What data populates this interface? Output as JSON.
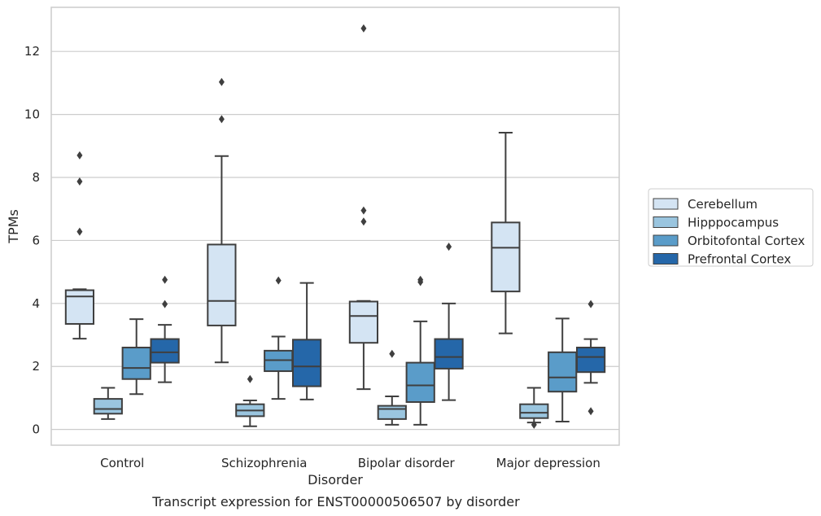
{
  "chart_data": {
    "type": "box",
    "title": "",
    "caption": "Transcript expression for ENST00000506507 by disorder",
    "xlabel": "Disorder",
    "ylabel": "TPMs",
    "ylim": [
      -0.5,
      13.4
    ],
    "yticks": [
      0,
      2,
      4,
      6,
      8,
      10,
      12
    ],
    "grid": "horizontal",
    "legend_position": "right",
    "categories": [
      "Control",
      "Schizophrenia",
      "Bipolar disorder",
      "Major depression"
    ],
    "series": [
      {
        "name": "Cerebellum",
        "color": "#d4e4f3",
        "boxes": [
          {
            "whislo": 2.88,
            "q1": 3.35,
            "med": 4.22,
            "q3": 4.42,
            "whishi": 4.45,
            "fliers": [
              8.7,
              7.87,
              6.28
            ]
          },
          {
            "whislo": 2.13,
            "q1": 3.3,
            "med": 4.08,
            "q3": 5.87,
            "whishi": 8.68,
            "fliers": [
              11.03,
              9.85
            ]
          },
          {
            "whislo": 1.28,
            "q1": 2.75,
            "med": 3.6,
            "q3": 4.06,
            "whishi": 4.08,
            "fliers": [
              12.73,
              6.95,
              6.6
            ]
          },
          {
            "whislo": 3.05,
            "q1": 4.38,
            "med": 5.77,
            "q3": 6.57,
            "whishi": 9.42,
            "fliers": []
          }
        ]
      },
      {
        "name": "Hipppocampus",
        "color": "#9ac5df",
        "boxes": [
          {
            "whislo": 0.33,
            "q1": 0.5,
            "med": 0.65,
            "q3": 0.97,
            "whishi": 1.32,
            "fliers": []
          },
          {
            "whislo": 0.1,
            "q1": 0.42,
            "med": 0.6,
            "q3": 0.8,
            "whishi": 0.92,
            "fliers": [
              1.6
            ]
          },
          {
            "whislo": 0.15,
            "q1": 0.33,
            "med": 0.65,
            "q3": 0.75,
            "whishi": 1.05,
            "fliers": [
              2.4
            ]
          },
          {
            "whislo": 0.22,
            "q1": 0.36,
            "med": 0.53,
            "q3": 0.8,
            "whishi": 1.32,
            "fliers": [
              0.15
            ]
          }
        ]
      },
      {
        "name": "Orbitofontal Cortex",
        "color": "#5a9cc9",
        "boxes": [
          {
            "whislo": 1.12,
            "q1": 1.6,
            "med": 1.95,
            "q3": 2.6,
            "whishi": 3.5,
            "fliers": []
          },
          {
            "whislo": 0.97,
            "q1": 1.85,
            "med": 2.2,
            "q3": 2.5,
            "whishi": 2.95,
            "fliers": [
              4.73
            ]
          },
          {
            "whislo": 0.15,
            "q1": 0.87,
            "med": 1.4,
            "q3": 2.12,
            "whishi": 3.43,
            "fliers": [
              4.75,
              4.68
            ]
          },
          {
            "whislo": 0.25,
            "q1": 1.2,
            "med": 1.65,
            "q3": 2.45,
            "whishi": 3.52,
            "fliers": []
          }
        ]
      },
      {
        "name": "Prefrontal Cortex",
        "color": "#2567a9",
        "boxes": [
          {
            "whislo": 1.5,
            "q1": 2.12,
            "med": 2.45,
            "q3": 2.87,
            "whishi": 3.32,
            "fliers": [
              4.75,
              3.98
            ]
          },
          {
            "whislo": 0.95,
            "q1": 1.37,
            "med": 2.0,
            "q3": 2.85,
            "whishi": 4.65,
            "fliers": []
          },
          {
            "whislo": 0.93,
            "q1": 1.93,
            "med": 2.3,
            "q3": 2.87,
            "whishi": 4.0,
            "fliers": [
              5.8
            ]
          },
          {
            "whislo": 1.48,
            "q1": 1.82,
            "med": 2.3,
            "q3": 2.6,
            "whishi": 2.87,
            "fliers": [
              3.98,
              0.58
            ]
          }
        ]
      }
    ]
  }
}
